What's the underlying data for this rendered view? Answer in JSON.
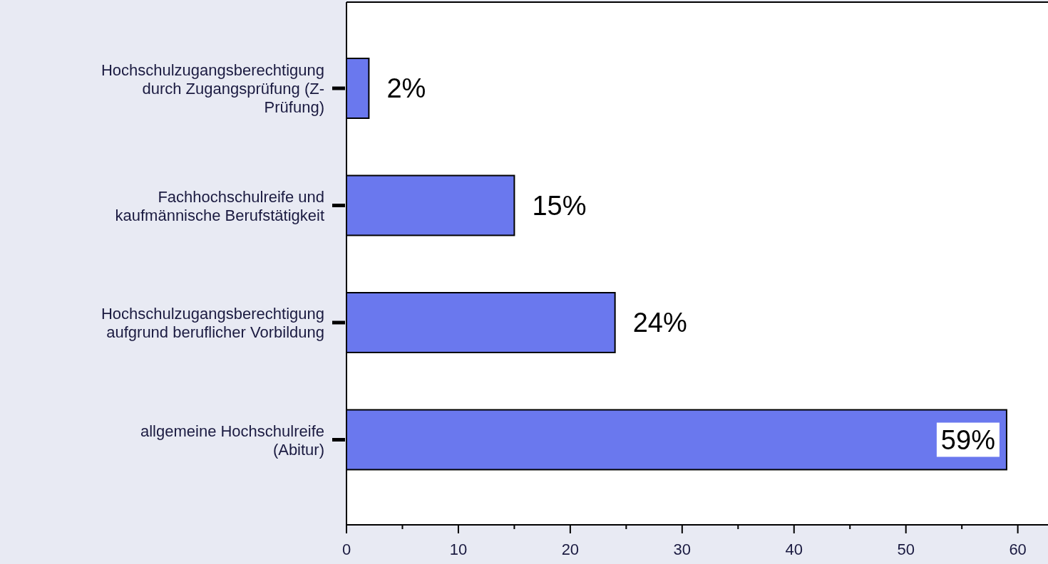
{
  "chart_data": {
    "type": "bar",
    "orientation": "horizontal",
    "categories": [
      "Hochschulzugangsberechtigung durch Zugangsprüfung (Z-Prüfung)",
      "Fachhochschulreife und kaufmännische Berufstätigkeit",
      "Hochschulzugangsberechtigung aufgrund beruflicher Vorbildung",
      "allgemeine Hochschulreife (Abitur)"
    ],
    "values": [
      2,
      15,
      24,
      59
    ],
    "value_labels": [
      "2%",
      "15%",
      "24%",
      "59%"
    ],
    "color": "#6a78ee",
    "xlim": [
      0,
      62.7
    ],
    "xticks": [
      0,
      {
        "value": 5,
        "label": null
      },
      10,
      {
        "value": 15,
        "label": null
      },
      20,
      {
        "value": 25,
        "label": null
      },
      30,
      {
        "value": 35,
        "label": null
      },
      40,
      {
        "value": 45,
        "label": null
      },
      50,
      {
        "value": 55,
        "label": null
      },
      60
    ],
    "grid": false
  }
}
